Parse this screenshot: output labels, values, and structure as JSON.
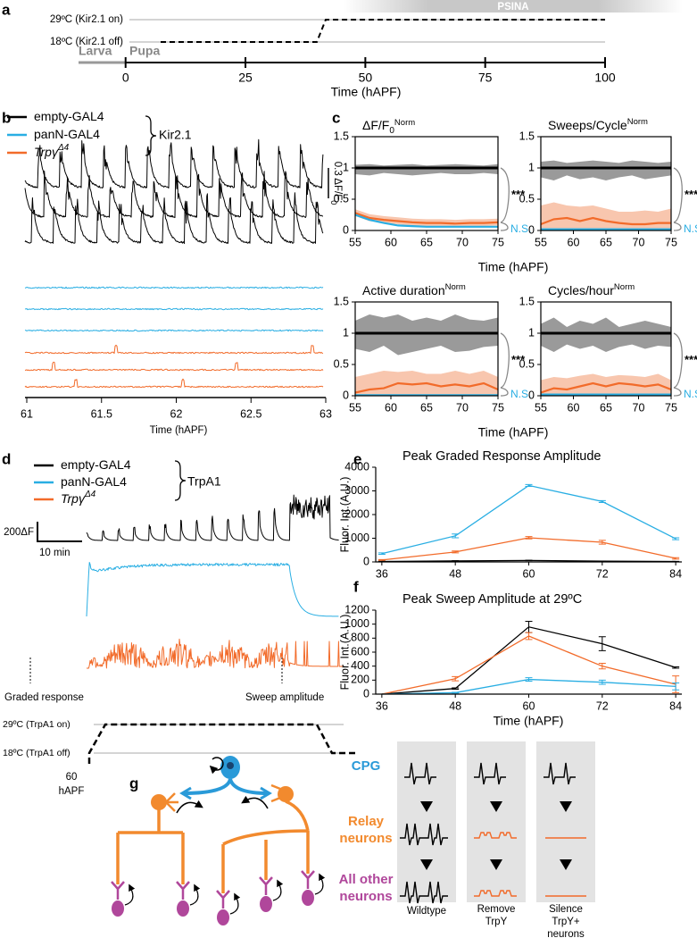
{
  "panel_a": {
    "label": "a",
    "period": "PSINA",
    "temp_on": "29ºC (Kir2.1 on)",
    "temp_off": "18ºC (Kir2.1 off)",
    "stage_larva": "Larva",
    "stage_pupa": "Pupa",
    "xlim": [
      -10,
      100
    ],
    "xticks": [
      0,
      25,
      50,
      75,
      100
    ],
    "xlabel": "Time (hAPF)"
  },
  "panel_b": {
    "label": "b",
    "legend": [
      {
        "name": "empty-GAL4",
        "color": "#000000"
      },
      {
        "name": "panN-GAL4",
        "color": "#29aee3"
      },
      {
        "name": "Trpγ",
        "sup": "Δ4",
        "color": "#f26b2a"
      }
    ],
    "legend_group": "Kir2.1",
    "scale_bar": "0.3 ΔF/F",
    "scale_bar_sub": "0",
    "xlim": [
      61,
      63
    ],
    "xticks": [
      61,
      61.5,
      62,
      62.5,
      63
    ],
    "xlabel": "Time (hAPF)"
  },
  "panel_c": {
    "label": "c"
  },
  "chart_data": [
    {
      "type": "line",
      "title": "ΔF/F",
      "title_sub": "0",
      "title_sup": "Norm",
      "x": [
        55,
        57,
        59,
        61,
        63,
        65,
        67,
        69,
        71,
        73,
        75
      ],
      "xlim": [
        55,
        75
      ],
      "xticks": [
        55,
        60,
        65,
        70,
        75
      ],
      "ylim": [
        0,
        1.5
      ],
      "yticks": [
        0,
        0.5,
        1,
        1.5
      ],
      "annotations": [
        "***",
        "N.S."
      ],
      "series": [
        {
          "color": "#000000",
          "band_color": "#9a9a9a",
          "values": [
            1,
            1,
            1,
            1,
            1,
            1,
            1,
            1,
            1,
            1,
            1
          ],
          "lower": [
            0.9,
            0.88,
            0.92,
            0.9,
            0.88,
            0.9,
            0.92,
            0.9,
            0.9,
            0.92,
            0.9
          ],
          "upper": [
            1.05,
            1.06,
            1.04,
            1.05,
            1.06,
            1.04,
            1.05,
            1.06,
            1.05,
            1.04,
            1.06
          ]
        },
        {
          "color": "#f26b2a",
          "band_color": "#f8c6ae",
          "values": [
            0.28,
            0.2,
            0.17,
            0.15,
            0.13,
            0.12,
            0.12,
            0.11,
            0.12,
            0.12,
            0.13
          ],
          "lower": [
            0.23,
            0.15,
            0.12,
            0.1,
            0.08,
            0.07,
            0.07,
            0.06,
            0.07,
            0.07,
            0.08
          ],
          "upper": [
            0.34,
            0.26,
            0.23,
            0.21,
            0.19,
            0.18,
            0.18,
            0.17,
            0.18,
            0.18,
            0.19
          ]
        },
        {
          "color": "#29aee3",
          "values": [
            0.25,
            0.17,
            0.12,
            0.08,
            0.07,
            0.06,
            0.06,
            0.06,
            0.06,
            0.06,
            0.06
          ]
        }
      ]
    },
    {
      "type": "line",
      "title": "Sweeps/Cycle",
      "title_sup": "Norm",
      "x": [
        55,
        57,
        59,
        61,
        63,
        65,
        67,
        69,
        71,
        73,
        75
      ],
      "xlim": [
        55,
        75
      ],
      "xticks": [
        55,
        60,
        65,
        70,
        75
      ],
      "ylim": [
        0,
        1.5
      ],
      "yticks": [
        0,
        0.5,
        1,
        1.5
      ],
      "xlabel": "Time (hAPF)",
      "annotations": [
        "***",
        "N.S."
      ],
      "series": [
        {
          "color": "#000000",
          "band_color": "#9a9a9a",
          "values": [
            1,
            1,
            1,
            1,
            1,
            1,
            1,
            1,
            1,
            1,
            1
          ],
          "lower": [
            0.85,
            0.8,
            0.88,
            0.82,
            0.85,
            0.8,
            0.85,
            0.88,
            0.82,
            0.85,
            0.88
          ],
          "upper": [
            1.1,
            1.12,
            1.08,
            1.1,
            1.12,
            1.1,
            1.08,
            1.12,
            1.1,
            1.08,
            1.1
          ]
        },
        {
          "color": "#f26b2a",
          "band_color": "#f8c6ae",
          "values": [
            0.1,
            0.18,
            0.2,
            0.15,
            0.2,
            0.15,
            0.12,
            0.1,
            0.1,
            0.12,
            0.12
          ],
          "lower": [
            0,
            0,
            0,
            0,
            0,
            0,
            0,
            0,
            0,
            0,
            0
          ],
          "upper": [
            0.4,
            0.45,
            0.4,
            0.38,
            0.4,
            0.35,
            0.3,
            0.3,
            0.32,
            0.3,
            0.35
          ]
        },
        {
          "color": "#29aee3",
          "values": [
            0.02,
            0.02,
            0.02,
            0.02,
            0.02,
            0.02,
            0.02,
            0.02,
            0.02,
            0.02,
            0.02
          ]
        }
      ]
    },
    {
      "type": "line",
      "title": "Active duration",
      "title_sup": "Norm",
      "x": [
        55,
        57,
        59,
        61,
        63,
        65,
        67,
        69,
        71,
        73,
        75
      ],
      "xlim": [
        55,
        75
      ],
      "xticks": [
        55,
        60,
        65,
        70,
        75
      ],
      "ylim": [
        0,
        1.5
      ],
      "yticks": [
        0,
        0.5,
        1,
        1.5
      ],
      "annotations": [
        "***",
        "N.S."
      ],
      "series": [
        {
          "color": "#000000",
          "band_color": "#9a9a9a",
          "values": [
            1,
            1,
            1,
            1,
            1,
            1,
            1,
            1,
            1,
            1,
            1
          ],
          "lower": [
            0.75,
            0.7,
            0.8,
            0.65,
            0.7,
            0.75,
            0.8,
            0.7,
            0.72,
            0.78,
            0.8
          ],
          "upper": [
            1.2,
            1.3,
            1.25,
            1.3,
            1.2,
            1.25,
            1.2,
            1.3,
            1.22,
            1.2,
            1.25
          ]
        },
        {
          "color": "#f26b2a",
          "band_color": "#f8c6ae",
          "values": [
            0.05,
            0.1,
            0.12,
            0.2,
            0.18,
            0.2,
            0.15,
            0.18,
            0.15,
            0.2,
            0.1
          ],
          "lower": [
            0,
            0,
            0,
            0,
            0,
            0,
            0,
            0,
            0,
            0,
            0
          ],
          "upper": [
            0.3,
            0.35,
            0.4,
            0.38,
            0.4,
            0.35,
            0.35,
            0.4,
            0.35,
            0.4,
            0.3
          ]
        },
        {
          "color": "#29aee3",
          "values": [
            0.01,
            0.01,
            0.01,
            0.01,
            0.01,
            0.01,
            0.01,
            0.01,
            0.01,
            0.01,
            0.01
          ]
        }
      ]
    },
    {
      "type": "line",
      "title": "Cycles/hour",
      "title_sup": "Norm",
      "x": [
        55,
        57,
        59,
        61,
        63,
        65,
        67,
        69,
        71,
        73,
        75
      ],
      "xlim": [
        55,
        75
      ],
      "xticks": [
        55,
        60,
        65,
        70,
        75
      ],
      "ylim": [
        0,
        1.5
      ],
      "yticks": [
        0,
        0.5,
        1,
        1.5
      ],
      "xlabel": "Time (hAPF)",
      "annotations": [
        "***",
        "N.S."
      ],
      "series": [
        {
          "color": "#000000",
          "band_color": "#9a9a9a",
          "values": [
            1,
            1,
            1,
            1,
            1,
            1,
            1,
            1,
            1,
            1,
            1
          ],
          "lower": [
            0.8,
            0.7,
            0.82,
            0.75,
            0.8,
            0.7,
            0.78,
            0.82,
            0.75,
            0.8,
            0.78
          ],
          "upper": [
            1.15,
            1.25,
            1.1,
            1.2,
            1.15,
            1.25,
            1.1,
            1.15,
            1.2,
            1.15,
            1.1
          ]
        },
        {
          "color": "#f26b2a",
          "band_color": "#f8c6ae",
          "values": [
            0.05,
            0.12,
            0.1,
            0.15,
            0.2,
            0.15,
            0.2,
            0.18,
            0.15,
            0.18,
            0.1
          ],
          "lower": [
            0,
            0,
            0,
            0,
            0,
            0,
            0,
            0,
            0,
            0,
            0
          ],
          "upper": [
            0.25,
            0.3,
            0.28,
            0.32,
            0.35,
            0.3,
            0.33,
            0.32,
            0.3,
            0.35,
            0.25
          ]
        },
        {
          "color": "#29aee3",
          "values": [
            0.02,
            0.02,
            0.02,
            0.02,
            0.02,
            0.02,
            0.02,
            0.02,
            0.02,
            0.02,
            0.02
          ]
        }
      ]
    },
    {
      "type": "line",
      "title": "Peak Graded Response Amplitude",
      "ylabel": "Fluor. Int.(A.U.)",
      "x": [
        36,
        48,
        60,
        72,
        84
      ],
      "xlim": [
        35,
        85
      ],
      "xticks": [
        36,
        48,
        60,
        72,
        84
      ],
      "ylim": [
        0,
        4000
      ],
      "yticks": [
        0,
        1000,
        2000,
        3000,
        4000
      ],
      "series": [
        {
          "color": "#29aee3",
          "values": [
            350,
            1100,
            3230,
            2550,
            980
          ],
          "errors": [
            30,
            80,
            40,
            40,
            40
          ]
        },
        {
          "color": "#f26b2a",
          "values": [
            80,
            420,
            1020,
            830,
            150
          ],
          "errors": [
            20,
            40,
            50,
            80,
            30
          ]
        },
        {
          "color": "#000000",
          "values": [
            20,
            40,
            60,
            30,
            20
          ],
          "errors": [
            5,
            10,
            10,
            10,
            5
          ]
        }
      ]
    },
    {
      "type": "line",
      "title": "Peak Sweep Amplitude at 29ºC",
      "ylabel": "Fluor. Int.(A.U.)",
      "xlabel": "Time (hAPF)",
      "x": [
        36,
        48,
        60,
        72,
        84
      ],
      "xlim": [
        35,
        85
      ],
      "xticks": [
        36,
        48,
        60,
        72,
        84
      ],
      "ylim": [
        0,
        1200
      ],
      "yticks": [
        0,
        200,
        400,
        600,
        800,
        1000,
        1200
      ],
      "series": [
        {
          "color": "#000000",
          "values": [
            0,
            80,
            960,
            720,
            380
          ],
          "errors": [
            0,
            10,
            80,
            100,
            10
          ]
        },
        {
          "color": "#f26b2a",
          "values": [
            0,
            220,
            830,
            400,
            140
          ],
          "errors": [
            0,
            30,
            50,
            40,
            120
          ]
        },
        {
          "color": "#29aee3",
          "values": [
            0,
            20,
            210,
            170,
            110
          ],
          "errors": [
            0,
            5,
            25,
            30,
            50
          ]
        }
      ]
    }
  ],
  "panel_d": {
    "label": "d",
    "legend": [
      {
        "name": "empty-GAL4",
        "color": "#000000"
      },
      {
        "name": "panN-GAL4",
        "color": "#29aee3"
      },
      {
        "name": "Trpγ",
        "sup": "Δ4",
        "color": "#f26b2a"
      }
    ],
    "legend_group": "TrpA1",
    "scale_y": "200ΔF",
    "scale_x": "10 min",
    "graded": "Graded response",
    "sweep": "Sweep amplitude",
    "temp_on": "29ºC (TrpA1 on)",
    "temp_off": "18ºC (TrpA1 off)",
    "start": "60",
    "start_unit": "hAPF"
  },
  "panel_e": {
    "label": "e"
  },
  "panel_f": {
    "label": "f"
  },
  "panel_g": {
    "label": "g",
    "cpg": "CPG",
    "relay": [
      "Relay",
      "neurons"
    ],
    "other": [
      "All other",
      "neurons"
    ],
    "columns": [
      [
        "Wildtype"
      ],
      [
        "Remove",
        "TrpY"
      ],
      [
        "Silence",
        "TrpY+",
        "neurons"
      ]
    ]
  }
}
